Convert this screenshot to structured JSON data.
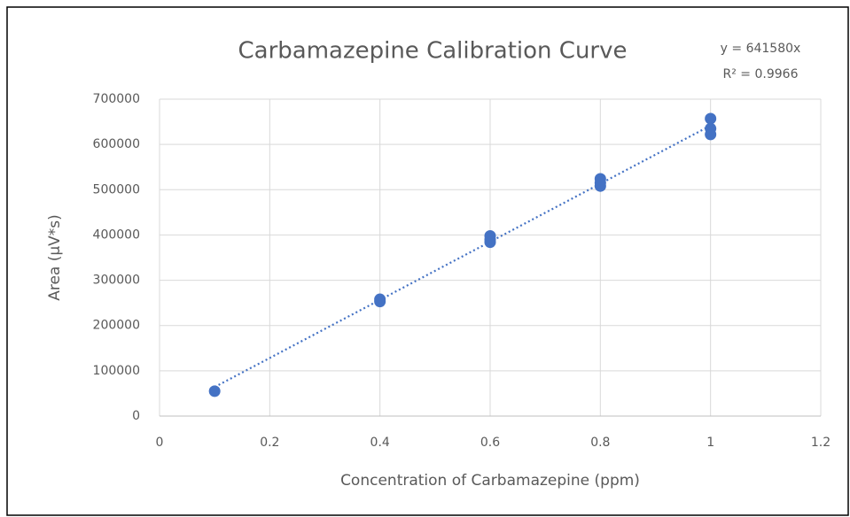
{
  "chart_data": {
    "type": "scatter",
    "title": "Carbamazepine Calibration Curve",
    "x_label": "Concentration of Carbamazepine (ppm)",
    "y_label": "Area (µV*s)",
    "annotations": [
      "y = 641580x",
      "R² = 0.9966"
    ],
    "series": [
      {
        "name": "Area",
        "color": "#4472c4",
        "x": [
          0.1,
          0.4,
          0.4,
          0.6,
          0.6,
          0.6,
          0.8,
          0.8,
          0.8,
          1,
          1,
          1
        ],
        "values": [
          55000,
          258000,
          253000,
          398000,
          390000,
          384000,
          524000,
          515000,
          508000,
          657000,
          635000,
          622000
        ]
      }
    ],
    "trendline": {
      "slope": 641580,
      "x_range": [
        0.1,
        1
      ],
      "color": "#4472c4"
    },
    "xlim": [
      0,
      1.2
    ],
    "xticks": [
      0,
      0.2,
      0.4,
      0.6,
      0.8,
      1,
      1.2
    ],
    "ylim": [
      0,
      700000
    ],
    "yticks": [
      0,
      100000,
      200000,
      300000,
      400000,
      500000,
      600000,
      700000
    ],
    "grid": true
  }
}
